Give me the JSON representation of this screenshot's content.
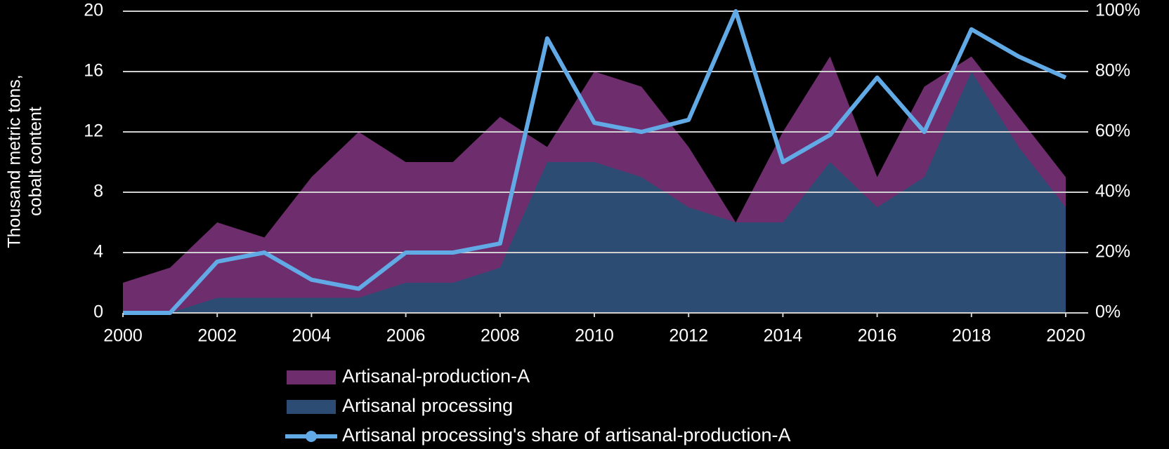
{
  "chart_data": {
    "type": "area-line",
    "ylabel": [
      "Thousand  metric tons,",
      "cobalt content"
    ],
    "x": [
      2000,
      2001,
      2002,
      2003,
      2004,
      2005,
      2006,
      2007,
      2008,
      2009,
      2010,
      2011,
      2012,
      2013,
      2014,
      2015,
      2016,
      2017,
      2018,
      2019,
      2020
    ],
    "xlim": [
      2000,
      2020
    ],
    "xticks": [
      2000,
      2002,
      2004,
      2006,
      2008,
      2010,
      2012,
      2014,
      2016,
      2018,
      2020
    ],
    "ylim": [
      0,
      20
    ],
    "yticks": [
      0,
      4,
      8,
      12,
      16,
      20
    ],
    "y2lim": [
      0,
      100
    ],
    "y2ticks": [
      {
        "value": 0,
        "label": "0%"
      },
      {
        "value": 20,
        "label": "20%"
      },
      {
        "value": 40,
        "label": "40%"
      },
      {
        "value": 60,
        "label": "60%"
      },
      {
        "value": 80,
        "label": "80%"
      },
      {
        "value": 100,
        "label": "100%"
      }
    ],
    "grid": true,
    "legend": "bottom",
    "series": [
      {
        "name": "Artisanal-production-A",
        "kind": "area",
        "color": "#6e2d6c",
        "values": [
          2,
          3,
          6,
          5,
          9,
          12,
          10,
          10,
          13,
          11,
          16,
          15,
          11,
          6,
          12,
          17,
          9,
          15,
          17,
          13,
          9
        ]
      },
      {
        "name": "Artisanal processing",
        "kind": "area",
        "color": "#2c4c74",
        "values": [
          0,
          0,
          1,
          1,
          1,
          1,
          2,
          2,
          3,
          10,
          10,
          9,
          7,
          6,
          6,
          10,
          7,
          9,
          16,
          11,
          7
        ]
      },
      {
        "name": "Artisanal processing's share of artisanal-production-A",
        "kind": "line",
        "axis": "y2",
        "color": "#62aae6",
        "values": [
          0,
          0,
          17,
          20,
          11,
          8,
          20,
          20,
          23,
          91,
          63,
          60,
          64,
          100,
          50,
          59,
          78,
          60,
          94,
          85,
          78
        ]
      }
    ]
  }
}
